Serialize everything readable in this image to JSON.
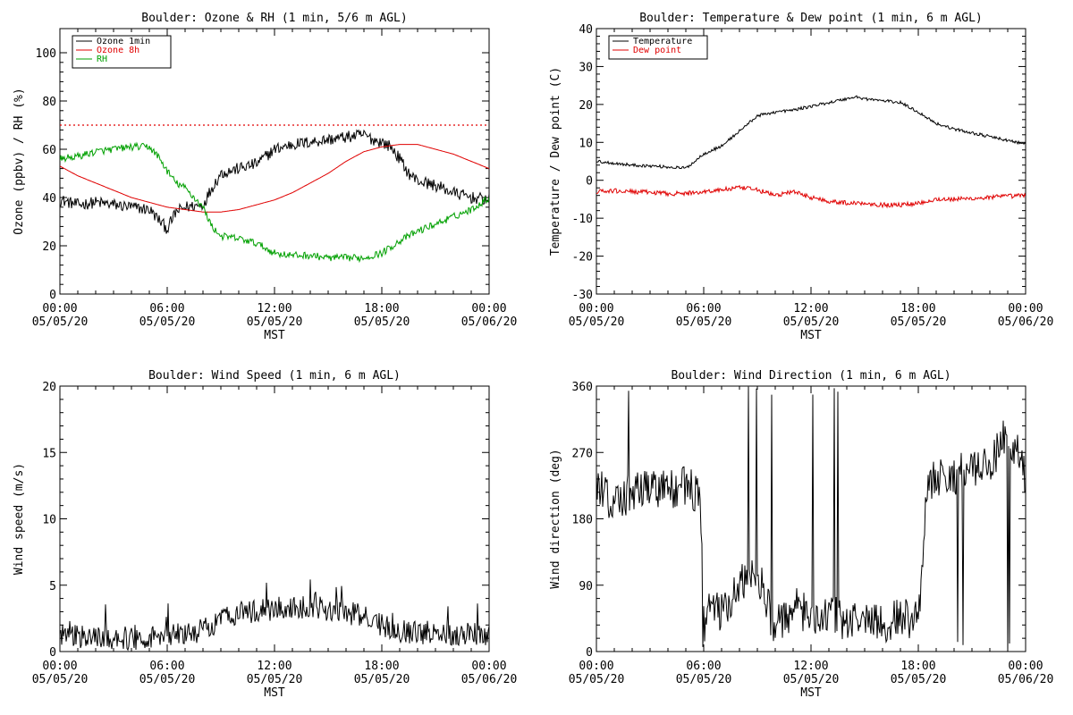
{
  "chart_data": [
    {
      "id": "ozone_rh",
      "type": "line",
      "title": "Boulder: Ozone & RH (1 min, 5/6 m AGL)",
      "ylabel": "Ozone (ppbv) / RH (%)",
      "xlabel": "MST",
      "ylim": [
        0,
        110
      ],
      "yticks": [
        "0",
        "20",
        "40",
        "60",
        "80",
        "100"
      ],
      "xticks": [
        {
          "time": "00:00",
          "date": "05/05/20"
        },
        {
          "time": "06:00",
          "date": "05/05/20"
        },
        {
          "time": "12:00",
          "date": "05/05/20"
        },
        {
          "time": "18:00",
          "date": "05/05/20"
        },
        {
          "time": "00:00",
          "date": "05/06/20"
        }
      ],
      "grid": false,
      "legend_position": "top-left",
      "reference_line": {
        "value": 70,
        "color": "#e00000",
        "style": "dotted"
      },
      "series": [
        {
          "name": "Ozone 1min",
          "color": "#000000",
          "noise": 2.5,
          "x": [
            0,
            1,
            2,
            3,
            4,
            5,
            5.5,
            6,
            6.5,
            7,
            8,
            8.5,
            9,
            10,
            11,
            12,
            13,
            14,
            15,
            16,
            17,
            17.5,
            18,
            18.5,
            19,
            19.5,
            20,
            21,
            22,
            23,
            24
          ],
          "y": [
            39,
            37,
            38,
            37,
            36,
            35,
            31,
            27,
            34,
            36,
            37,
            44,
            50,
            52,
            54,
            60,
            62,
            63,
            64,
            65,
            66,
            64,
            63,
            61,
            56,
            50,
            47,
            45,
            42,
            40,
            39
          ]
        },
        {
          "name": "Ozone 8h",
          "color": "#e00000",
          "noise": 0,
          "x": [
            0,
            1,
            2,
            3,
            4,
            5,
            6,
            7,
            8,
            9,
            10,
            11,
            12,
            13,
            14,
            15,
            16,
            17,
            18,
            19,
            20,
            21,
            22,
            23,
            24
          ],
          "y": [
            53,
            49,
            46,
            43,
            40,
            38,
            36,
            35,
            34,
            34,
            35,
            37,
            39,
            42,
            46,
            50,
            55,
            59,
            61,
            62,
            62,
            60,
            58,
            55,
            52
          ]
        },
        {
          "name": "RH",
          "color": "#00a000",
          "noise": 1.5,
          "x": [
            0,
            1,
            2,
            3,
            4,
            5,
            5.5,
            6,
            6.5,
            7,
            7.5,
            8,
            8.5,
            9,
            10,
            11,
            12,
            13,
            14,
            15,
            16,
            17,
            18,
            19,
            20,
            21,
            22,
            23,
            24
          ],
          "y": [
            56,
            57,
            59,
            60,
            61,
            61,
            57,
            51,
            46,
            44,
            40,
            36,
            28,
            24,
            23,
            21,
            17,
            16,
            16,
            15,
            15,
            15,
            17,
            22,
            26,
            29,
            32,
            35,
            40
          ]
        }
      ]
    },
    {
      "id": "temp_dew",
      "type": "line",
      "title": "Boulder: Temperature & Dew point (1 min, 6 m AGL)",
      "ylabel": "Temperature / Dew point (C)",
      "xlabel": "MST",
      "ylim": [
        -30,
        40
      ],
      "yticks": [
        "-30",
        "-20",
        "-10",
        "0",
        "10",
        "20",
        "30",
        "40"
      ],
      "xticks": [
        {
          "time": "00:00",
          "date": "05/05/20"
        },
        {
          "time": "06:00",
          "date": "05/05/20"
        },
        {
          "time": "12:00",
          "date": "05/05/20"
        },
        {
          "time": "18:00",
          "date": "05/05/20"
        },
        {
          "time": "00:00",
          "date": "05/06/20"
        }
      ],
      "grid": false,
      "legend_position": "top-left",
      "series": [
        {
          "name": "Temperature",
          "color": "#000000",
          "noise": 0.4,
          "x": [
            0,
            1,
            2,
            3,
            4,
            5,
            5.5,
            6,
            7,
            8,
            9,
            10,
            11,
            12,
            13,
            14,
            14.5,
            15,
            16,
            17,
            18,
            19,
            20,
            21,
            22,
            23,
            24
          ],
          "y": [
            5,
            4.5,
            4,
            3.8,
            3.5,
            3.2,
            5,
            7,
            9,
            13,
            17,
            18,
            18.5,
            19.5,
            20.5,
            21.5,
            22,
            21.5,
            21,
            20.5,
            18,
            15,
            13.5,
            12.5,
            11.5,
            10.5,
            9.5
          ]
        },
        {
          "name": "Dew point",
          "color": "#e00000",
          "noise": 0.6,
          "x": [
            0,
            1,
            2,
            3,
            4,
            5,
            6,
            7,
            8,
            9,
            10,
            11,
            12,
            13,
            14,
            15,
            16,
            17,
            18,
            19,
            20,
            21,
            22,
            23,
            24
          ],
          "y": [
            -3,
            -2.8,
            -3,
            -3.2,
            -3.5,
            -3.5,
            -3,
            -2.5,
            -2,
            -2.5,
            -4,
            -3,
            -4.5,
            -5.5,
            -6,
            -6,
            -6.5,
            -6.5,
            -6,
            -5,
            -5,
            -4.8,
            -4.5,
            -4.2,
            -4
          ]
        }
      ]
    },
    {
      "id": "wind_speed",
      "type": "line",
      "title": "Boulder: Wind Speed (1 min, 6 m AGL)",
      "ylabel": "Wind speed (m/s)",
      "xlabel": "MST",
      "ylim": [
        0,
        20
      ],
      "yticks": [
        "0",
        "5",
        "10",
        "15",
        "20"
      ],
      "xticks": [
        {
          "time": "00:00",
          "date": "05/05/20"
        },
        {
          "time": "06:00",
          "date": "05/05/20"
        },
        {
          "time": "12:00",
          "date": "05/05/20"
        },
        {
          "time": "18:00",
          "date": "05/05/20"
        },
        {
          "time": "00:00",
          "date": "05/06/20"
        }
      ],
      "grid": false,
      "series": [
        {
          "name": "",
          "color": "#000000",
          "noise": 0.9,
          "x": [
            0,
            2,
            4,
            6,
            7,
            8,
            9,
            10,
            11,
            12,
            13,
            14,
            15,
            16,
            17,
            18,
            19,
            20,
            21,
            22,
            23,
            24
          ],
          "y": [
            1.2,
            1.1,
            1.0,
            1.2,
            1.4,
            1.6,
            2.4,
            3.0,
            3.0,
            3.2,
            3.3,
            3.4,
            3.2,
            3.0,
            2.6,
            2.0,
            1.6,
            1.4,
            1.5,
            1.3,
            1.4,
            1.3
          ]
        }
      ]
    },
    {
      "id": "wind_dir",
      "type": "line",
      "title": "Boulder: Wind Direction (1 min, 6 m AGL)",
      "ylabel": "Wind direction (deg)",
      "xlabel": "MST",
      "ylim": [
        0,
        360
      ],
      "yticks": [
        "0",
        "90",
        "180",
        "270",
        "360"
      ],
      "xticks": [
        {
          "time": "00:00",
          "date": "05/05/20"
        },
        {
          "time": "06:00",
          "date": "05/05/20"
        },
        {
          "time": "12:00",
          "date": "05/05/20"
        },
        {
          "time": "18:00",
          "date": "05/05/20"
        },
        {
          "time": "00:00",
          "date": "05/06/20"
        }
      ],
      "grid": false,
      "series": [
        {
          "name": "",
          "color": "#000000",
          "noise": 28,
          "x": [
            0,
            1,
            2,
            3,
            4,
            5,
            5.8,
            6,
            7,
            8,
            9,
            10,
            11,
            12,
            13,
            14,
            15,
            16,
            17,
            18,
            18.5,
            19,
            20,
            21,
            22,
            23,
            24
          ],
          "y": [
            230,
            200,
            215,
            225,
            220,
            225,
            210,
            60,
            50,
            90,
            110,
            30,
            60,
            50,
            50,
            40,
            45,
            40,
            45,
            45,
            230,
            235,
            240,
            245,
            250,
            300,
            240
          ]
        }
      ]
    }
  ]
}
